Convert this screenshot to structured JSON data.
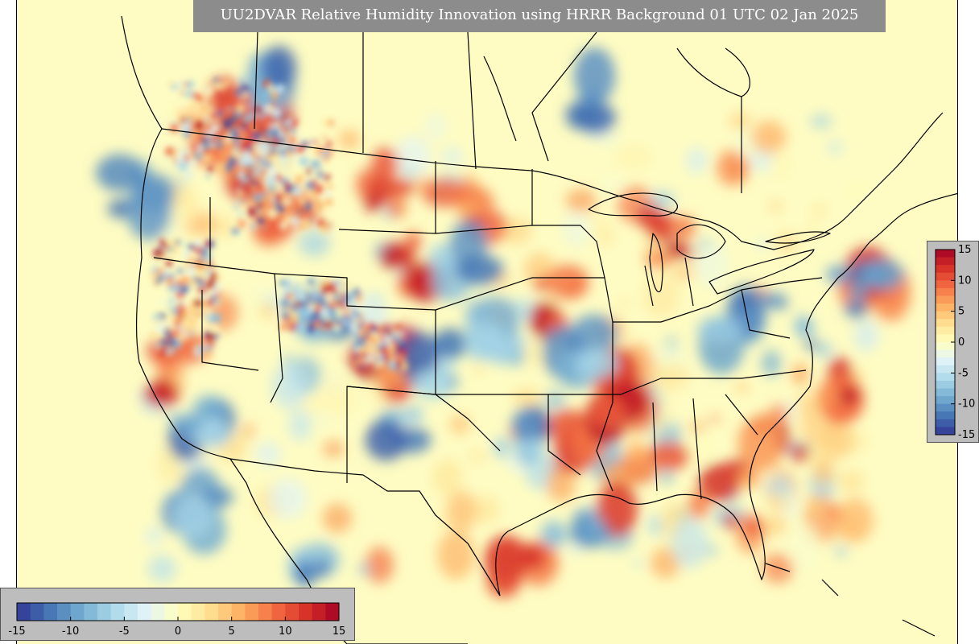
{
  "title": "UU2DVAR Relative Humidity Innovation using HRRR Background 01 UTC 02 Jan 2025",
  "colorscale": {
    "min": -15,
    "max": 15,
    "steps": 24,
    "stops": [
      "#313695",
      "#4575b4",
      "#74add1",
      "#abd9e9",
      "#e0f3f8",
      "#ffffbf",
      "#fee090",
      "#fdae61",
      "#f46d43",
      "#d73027",
      "#a50026"
    ],
    "vertical_ticks": [
      "15",
      "10",
      "5",
      "0",
      "-5",
      "-10",
      "-15"
    ],
    "horizontal_ticks": [
      "-15",
      "-10",
      "-5",
      "0",
      "5",
      "10",
      "15"
    ]
  },
  "colors": {
    "background_field": "#fefcc3",
    "boundaries": "#000000",
    "title_box": "#8c8c8c",
    "colorbar_panel": "#bdbdbd"
  }
}
